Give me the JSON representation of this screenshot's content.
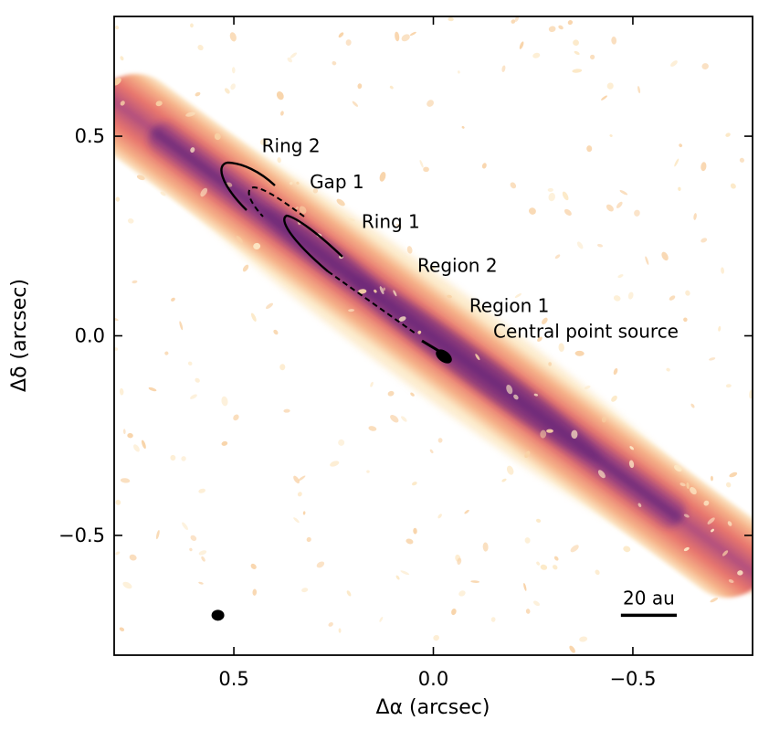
{
  "chart_data": {
    "type": "image",
    "xlabel": "Δα (arcsec)",
    "ylabel": "Δδ (arcsec)",
    "xlim": [
      0.8,
      -0.8
    ],
    "ylim": [
      -0.8,
      0.8
    ],
    "x_ticks": [
      {
        "value": 0.5,
        "label": "0.5"
      },
      {
        "value": 0.0,
        "label": "0.0"
      },
      {
        "value": -0.5,
        "label": "−0.5"
      }
    ],
    "y_ticks": [
      {
        "value": 0.5,
        "label": "0.5"
      },
      {
        "value": 0.0,
        "label": "0.0"
      },
      {
        "value": -0.5,
        "label": "−0.5"
      }
    ],
    "colormap": [
      "#fce8c5",
      "#f6b48a",
      "#e8766d",
      "#b9477d",
      "#7b2c83",
      "#3b1e6a"
    ],
    "annotations": [
      {
        "text": "Ring 2",
        "x": 0.43,
        "y": 0.46
      },
      {
        "text": "Gap 1",
        "x": 0.31,
        "y": 0.37
      },
      {
        "text": "Ring 1",
        "x": 0.18,
        "y": 0.27
      },
      {
        "text": "Region 2",
        "x": 0.04,
        "y": 0.16
      },
      {
        "text": "Region 1",
        "x": -0.09,
        "y": 0.06
      },
      {
        "text": "Central point source",
        "x": -0.15,
        "y": -0.005
      }
    ],
    "scale_bar": {
      "label": "20 au",
      "x_start": -0.47,
      "x_end": -0.61,
      "y": -0.7
    },
    "beam": {
      "x": 0.54,
      "y": -0.7
    }
  }
}
